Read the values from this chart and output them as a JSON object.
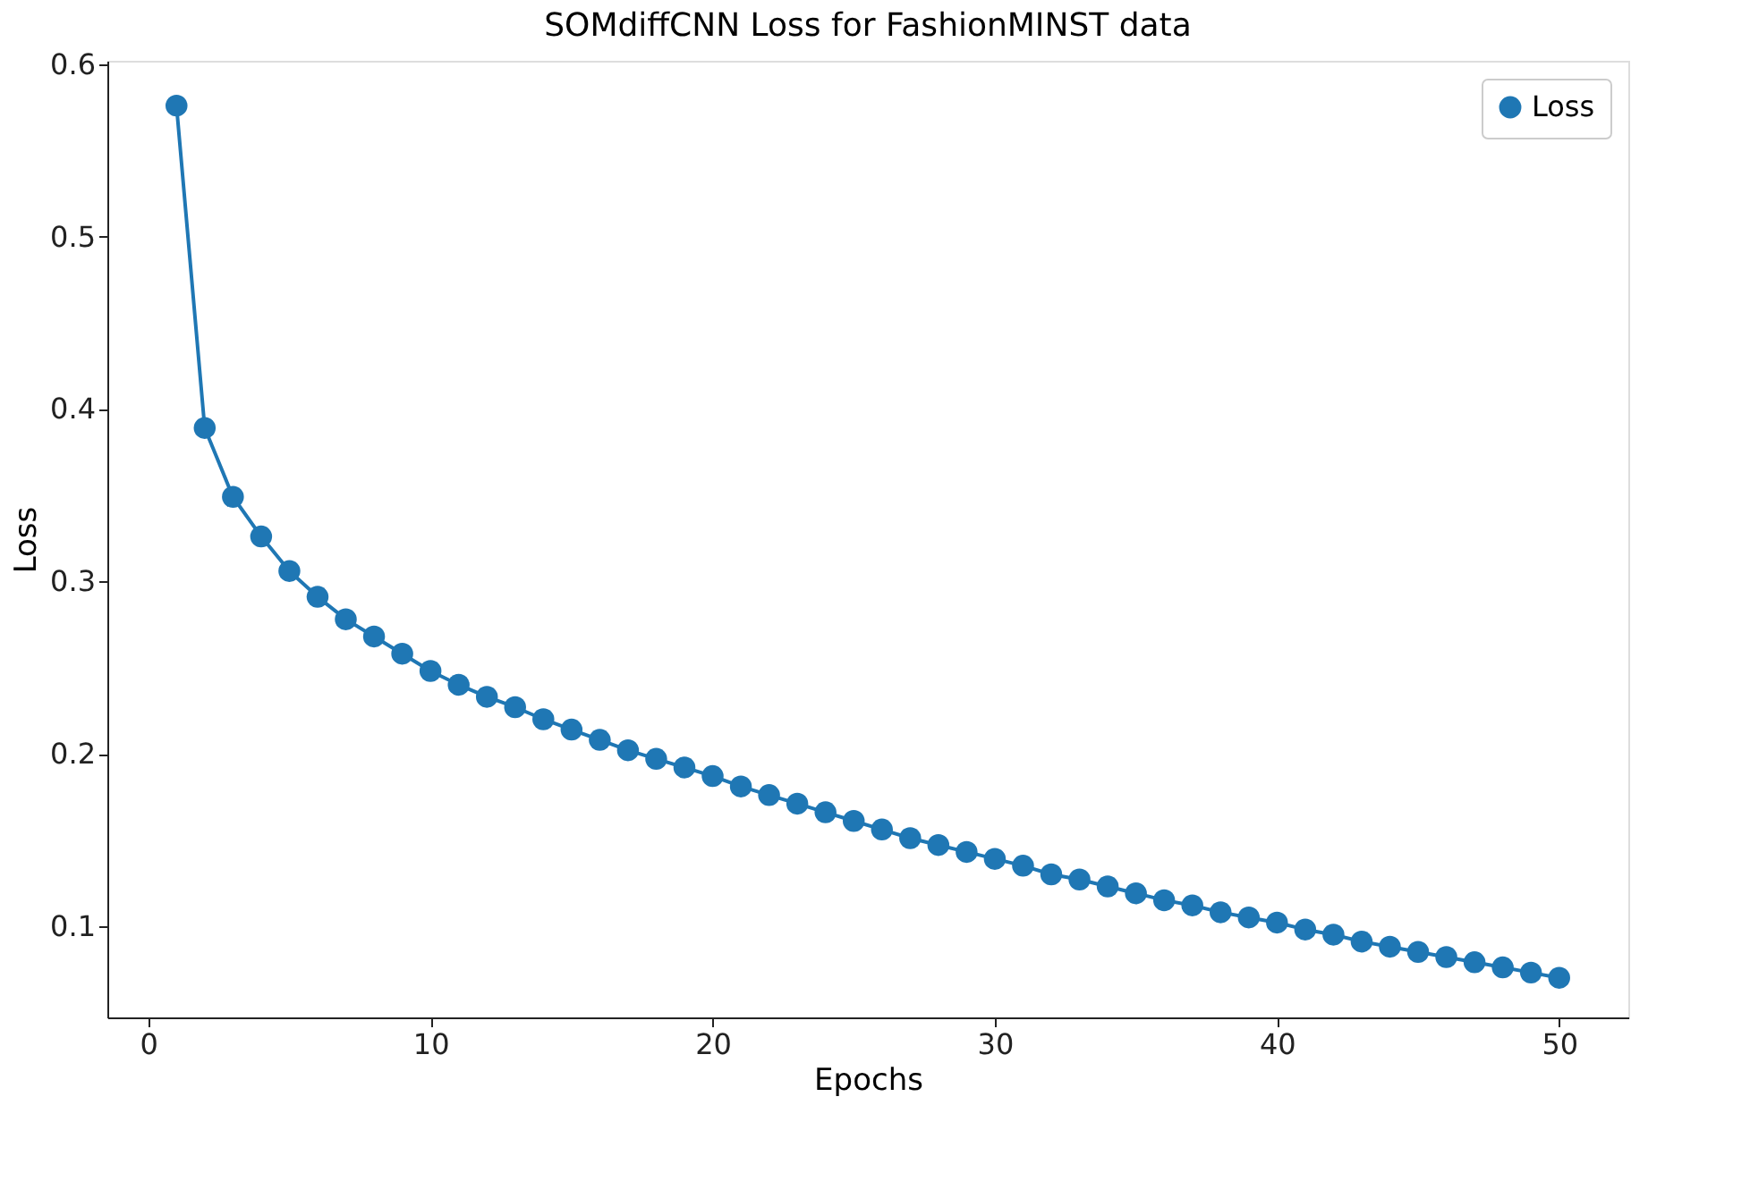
{
  "chart_data": {
    "type": "line",
    "title": "SOMdiffCNN Loss for FashionMINST data",
    "xlabel": "Epochs",
    "ylabel": "Loss",
    "x": [
      1,
      2,
      3,
      4,
      5,
      6,
      7,
      8,
      9,
      10,
      11,
      12,
      13,
      14,
      15,
      16,
      17,
      18,
      19,
      20,
      21,
      22,
      23,
      24,
      25,
      26,
      27,
      28,
      29,
      30,
      31,
      32,
      33,
      34,
      35,
      36,
      37,
      38,
      39,
      40,
      41,
      42,
      43,
      44,
      45,
      46,
      47,
      48,
      49,
      50
    ],
    "series": [
      {
        "name": "Loss",
        "color": "#1f77b4",
        "values": [
          0.576,
          0.389,
          0.349,
          0.326,
          0.306,
          0.291,
          0.278,
          0.268,
          0.258,
          0.248,
          0.24,
          0.233,
          0.227,
          0.22,
          0.214,
          0.208,
          0.202,
          0.197,
          0.192,
          0.187,
          0.181,
          0.176,
          0.171,
          0.166,
          0.161,
          0.156,
          0.151,
          0.147,
          0.143,
          0.139,
          0.135,
          0.13,
          0.127,
          0.123,
          0.119,
          0.115,
          0.112,
          0.108,
          0.105,
          0.102,
          0.098,
          0.095,
          0.091,
          0.088,
          0.085,
          0.082,
          0.079,
          0.076,
          0.073,
          0.07
        ]
      }
    ],
    "xlim": [
      -1.45,
      52.45
    ],
    "ylim": [
      0.047,
      0.602
    ],
    "xticks": [
      0,
      10,
      20,
      30,
      40,
      50
    ],
    "yticks": [
      0.1,
      0.2,
      0.3,
      0.4,
      0.5,
      0.6
    ],
    "legend": "top right",
    "marker": "circle",
    "line_style": "solid",
    "grid": false
  }
}
